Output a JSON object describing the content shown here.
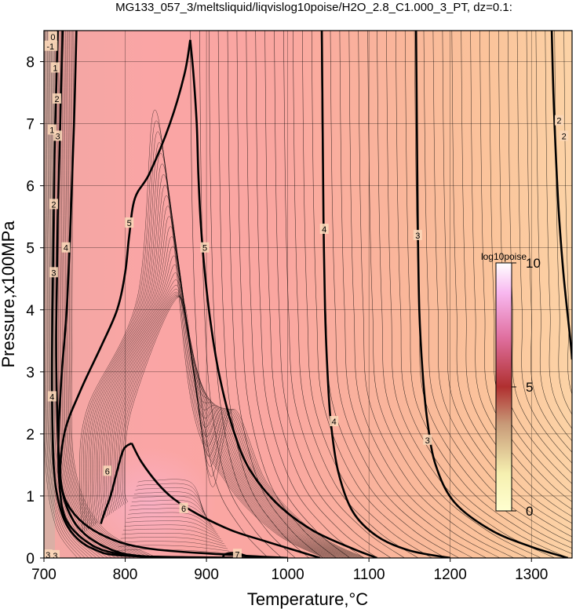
{
  "chart_data": {
    "type": "contour",
    "title": "MG133_057_3/meltsliquid/liqvislog10poise/H2O_2.8_C1.000_3_PT, dz=0.1:",
    "xlabel": "Temperature,°C",
    "ylabel": "Pressure,x100MPa",
    "xlim": [
      700,
      1350
    ],
    "ylim": [
      0,
      8.5
    ],
    "x_ticks": [
      "700",
      "800",
      "900",
      "1000",
      "1100",
      "1200",
      "1300"
    ],
    "y_ticks": [
      "0",
      "1",
      "2",
      "3",
      "4",
      "5",
      "6",
      "7",
      "8"
    ],
    "grid": true,
    "contour_interval": 0.1,
    "colorbar": {
      "title": "log10poise",
      "ticks": [
        "0",
        "5",
        "10"
      ],
      "range": [
        0,
        10
      ]
    },
    "bold_contours": [
      {
        "level": "4",
        "points": [
          [
            717,
            8.5
          ],
          [
            715,
            7.5
          ],
          [
            713,
            6.5
          ],
          [
            712,
            5.5
          ],
          [
            711,
            4.5
          ],
          [
            710,
            3.5
          ],
          [
            710,
            2.5
          ],
          [
            712,
            1.5
          ],
          [
            718,
            0.9
          ],
          [
            732,
            0.45
          ],
          [
            760,
            0.15
          ],
          [
            810,
            0.03
          ],
          [
            1000,
            0
          ]
        ]
      },
      {
        "level": "4",
        "points": [
          [
            1042,
            8.5
          ],
          [
            1043,
            7
          ],
          [
            1044,
            5.5
          ],
          [
            1046,
            4
          ],
          [
            1049,
            3
          ],
          [
            1053,
            2.2
          ],
          [
            1062,
            1.4
          ],
          [
            1080,
            0.75
          ],
          [
            1110,
            0.35
          ],
          [
            1150,
            0.12
          ],
          [
            1200,
            0
          ]
        ]
      },
      {
        "level": "3",
        "points": [
          [
            1158,
            8.5
          ],
          [
            1159,
            7
          ],
          [
            1160,
            5.5
          ],
          [
            1162,
            4
          ],
          [
            1166,
            3
          ],
          [
            1172,
            2.2
          ],
          [
            1182,
            1.5
          ],
          [
            1205,
            0.9
          ],
          [
            1250,
            0.45
          ],
          [
            1300,
            0.18
          ],
          [
            1345,
            0
          ]
        ]
      },
      {
        "level": "2",
        "points": [
          [
            1325,
            8.5
          ],
          [
            1327,
            7.5
          ],
          [
            1330,
            6.5
          ],
          [
            1334,
            5.5
          ],
          [
            1340,
            4.5
          ],
          [
            1348,
            3.5
          ],
          [
            1350,
            3.2
          ]
        ]
      },
      {
        "level": "4",
        "points": [
          [
            723,
            8.5
          ],
          [
            721,
            7.5
          ],
          [
            719,
            6.5
          ],
          [
            717,
            5.5
          ],
          [
            716,
            4.5
          ],
          [
            715,
            3.5
          ],
          [
            716,
            2.5
          ],
          [
            719,
            1.5
          ],
          [
            726,
            0.9
          ],
          [
            745,
            0.45
          ],
          [
            780,
            0.15
          ],
          [
            820,
            0.03
          ],
          [
            900,
            0
          ]
        ]
      },
      {
        "level": "5",
        "points": [
          [
            740,
            8.5
          ],
          [
            737,
            7
          ],
          [
            733,
            5.5
          ],
          [
            728,
            4
          ],
          [
            722,
            3
          ],
          [
            718,
            2
          ],
          [
            719,
            1.2
          ],
          [
            728,
            0.6
          ],
          [
            760,
            0.2
          ],
          [
            800,
            0.05
          ],
          [
            850,
            0
          ]
        ]
      },
      {
        "level": "5",
        "points": [
          [
            880,
            8.35
          ],
          [
            873,
            7.8
          ],
          [
            855,
            7
          ],
          [
            830,
            6.2
          ],
          [
            812,
            5.8
          ],
          [
            805,
            5.2
          ],
          [
            800,
            4.6
          ],
          [
            790,
            4
          ],
          [
            770,
            3.4
          ],
          [
            745,
            2.7
          ],
          [
            725,
            2
          ],
          [
            721,
            1.2
          ],
          [
            738,
            0.7
          ],
          [
            775,
            0.35
          ],
          [
            830,
            0.15
          ],
          [
            930,
            0.05
          ],
          [
            1000,
            0
          ]
        ]
      },
      {
        "level": "5",
        "points": [
          [
            880,
            8.35
          ],
          [
            884,
            7.8
          ],
          [
            888,
            7
          ],
          [
            890,
            6.2
          ],
          [
            893,
            5.4
          ],
          [
            898,
            4.6
          ],
          [
            905,
            3.8
          ],
          [
            915,
            3
          ],
          [
            930,
            2.2
          ],
          [
            950,
            1.5
          ],
          [
            985,
            0.9
          ],
          [
            1030,
            0.45
          ],
          [
            1080,
            0.15
          ],
          [
            1110,
            0
          ]
        ]
      },
      {
        "level": "6",
        "points": [
          [
            808,
            1.85
          ],
          [
            798,
            1.75
          ],
          [
            790,
            1.4
          ],
          [
            782,
            1
          ],
          [
            775,
            0.75
          ],
          [
            770,
            0.55
          ]
        ]
      },
      {
        "level": "6",
        "points": [
          [
            808,
            1.85
          ],
          [
            820,
            1.55
          ],
          [
            840,
            1.2
          ],
          [
            860,
            0.95
          ],
          [
            890,
            0.7
          ],
          [
            930,
            0.45
          ],
          [
            970,
            0.28
          ],
          [
            1010,
            0.12
          ],
          [
            1040,
            0
          ]
        ]
      },
      {
        "level": "7",
        "points": [
          [
            920,
            0
          ],
          [
            923,
            0.06
          ],
          [
            935,
            0.08
          ],
          [
            950,
            0.03
          ],
          [
            955,
            0
          ]
        ]
      }
    ],
    "contour_labels": [
      {
        "text": "4",
        "x": 710,
        "y": 2.6
      },
      {
        "text": "4",
        "x": 1045,
        "y": 5.3
      },
      {
        "text": "4",
        "x": 1057,
        "y": 2.2
      },
      {
        "text": "3",
        "x": 1160,
        "y": 5.2
      },
      {
        "text": "3",
        "x": 1172,
        "y": 1.9
      },
      {
        "text": "2",
        "x": 1334,
        "y": 7.05
      },
      {
        "text": "2",
        "x": 1340,
        "y": 6.8
      },
      {
        "text": "4",
        "x": 727,
        "y": 5.0
      },
      {
        "text": "5",
        "x": 805,
        "y": 5.4
      },
      {
        "text": "5",
        "x": 898,
        "y": 5.0
      },
      {
        "text": "6",
        "x": 778,
        "y": 1.4
      },
      {
        "text": "6",
        "x": 872,
        "y": 0.8
      },
      {
        "text": "7",
        "x": 938,
        "y": 0.06
      },
      {
        "text": "3",
        "x": 712,
        "y": 4.6
      },
      {
        "text": "3",
        "x": 717,
        "y": 6.8
      },
      {
        "text": "2",
        "x": 712,
        "y": 5.7
      },
      {
        "text": "2",
        "x": 716,
        "y": 7.4
      },
      {
        "text": "1",
        "x": 714,
        "y": 7.9
      },
      {
        "text": "1",
        "x": 710,
        "y": 6.9
      },
      {
        "text": "0",
        "x": 711,
        "y": 8.4
      },
      {
        "text": "-1",
        "x": 708,
        "y": 8.25
      },
      {
        "text": "3",
        "x": 705,
        "y": 0.05
      },
      {
        "text": "3",
        "x": 714,
        "y": 0.04
      }
    ]
  }
}
